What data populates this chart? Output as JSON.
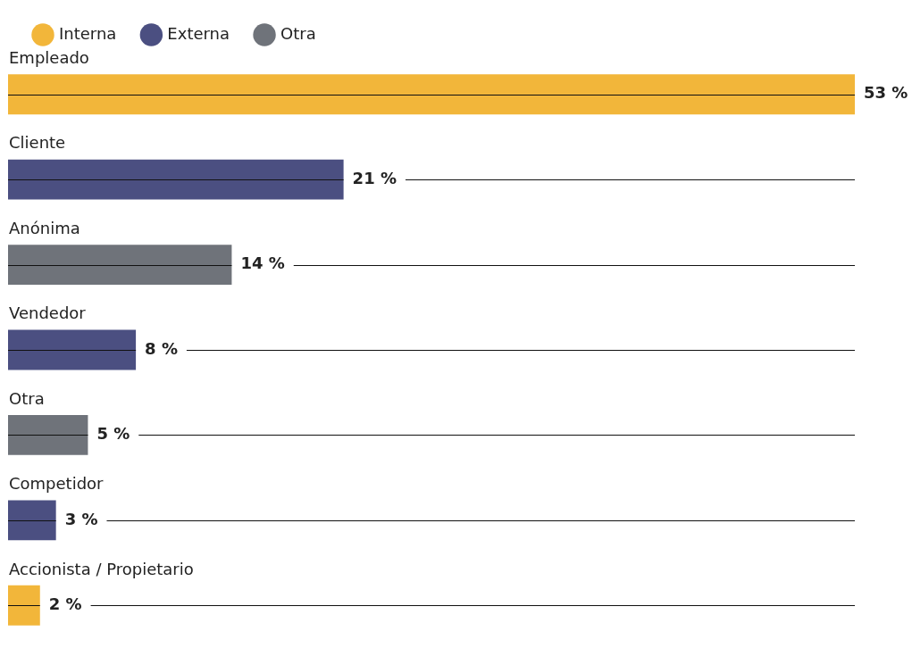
{
  "chart_data": {
    "type": "bar",
    "orientation": "horizontal",
    "stacked": true,
    "legend": "top left",
    "data_labels": false,
    "categories": [
      "Empleado",
      "Cliente",
      "Anónima",
      "Vendedor",
      "Otra",
      "Competidor",
      "Accionista / Propietario"
    ],
    "series": [
      {
        "name": "Interna",
        "color": "#f2b63a",
        "values": [
          53,
          null,
          null,
          null,
          null,
          null,
          2
        ],
        "value_labels": [
          "53 %",
          null,
          null,
          null,
          null,
          null,
          "2 %"
        ]
      },
      {
        "name": "Externa",
        "color": "#4b4f81",
        "values": [
          null,
          21,
          null,
          8,
          null,
          3,
          null
        ],
        "value_labels": [
          null,
          "21 %",
          null,
          "8 %",
          null,
          "3 %",
          null
        ]
      },
      {
        "name": "Otra",
        "color": "#6f737a",
        "values": [
          null,
          null,
          14,
          null,
          5,
          null,
          null
        ],
        "value_labels": [
          null,
          null,
          "14 %",
          null,
          "5 %",
          null,
          null
        ]
      }
    ]
  }
}
